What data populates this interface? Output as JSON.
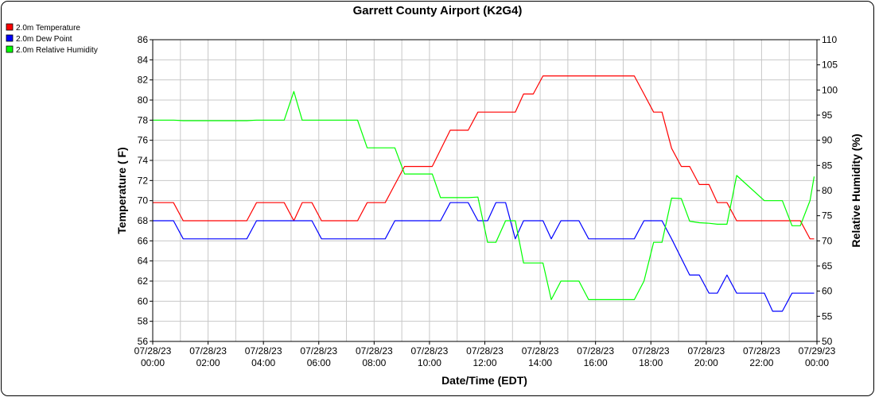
{
  "chart_data": {
    "type": "line",
    "title": "Garrett County Airport (K2G4)",
    "xlabel": "Date/Time (EDT)",
    "ylabel": "Temperature ( F)",
    "y2label": "Relative Humidity (%)",
    "ylim": [
      56,
      86
    ],
    "y2lim": [
      50,
      110
    ],
    "grid": true,
    "legend_position": "top-left",
    "x_range_hours": [
      0,
      24
    ],
    "x_tick_labels": [
      [
        "07/28/23",
        "00:00"
      ],
      [
        "07/28/23",
        "02:00"
      ],
      [
        "07/28/23",
        "04:00"
      ],
      [
        "07/28/23",
        "06:00"
      ],
      [
        "07/28/23",
        "08:00"
      ],
      [
        "07/28/23",
        "10:00"
      ],
      [
        "07/28/23",
        "12:00"
      ],
      [
        "07/28/23",
        "14:00"
      ],
      [
        "07/28/23",
        "16:00"
      ],
      [
        "07/28/23",
        "18:00"
      ],
      [
        "07/28/23",
        "20:00"
      ],
      [
        "07/28/23",
        "22:00"
      ],
      [
        "07/29/23",
        "00:00"
      ]
    ],
    "y_ticks": [
      56,
      58,
      60,
      62,
      64,
      66,
      68,
      70,
      72,
      74,
      76,
      78,
      80,
      82,
      84,
      86
    ],
    "y2_ticks": [
      50,
      55,
      60,
      65,
      70,
      75,
      80,
      85,
      90,
      95,
      100,
      105,
      110
    ],
    "series": [
      {
        "name": "2.0m Temperature",
        "axis": "left",
        "color": "#ff0000",
        "x": [
          0,
          0.75,
          1.1,
          3.4,
          3.75,
          4.75,
          5.1,
          5.4,
          5.75,
          6.1,
          7.4,
          7.75,
          8.4,
          8.75,
          9.1,
          10.1,
          10.75,
          11.4,
          11.75,
          13.1,
          13.4,
          13.75,
          14.1,
          17.4,
          17.75,
          18.1,
          18.4,
          18.75,
          19.1,
          19.4,
          19.75,
          20.1,
          20.4,
          20.75,
          21.1,
          23.4,
          23.75,
          23.9
        ],
        "y": [
          69.8,
          69.8,
          68.0,
          68.0,
          69.8,
          69.8,
          68.0,
          69.8,
          69.8,
          68.0,
          68.0,
          69.8,
          69.8,
          71.6,
          73.4,
          73.4,
          77.0,
          77.0,
          78.8,
          78.8,
          80.6,
          80.6,
          82.4,
          82.4,
          80.6,
          78.8,
          78.8,
          75.2,
          73.4,
          73.4,
          71.6,
          71.6,
          69.8,
          69.8,
          68.0,
          68.0,
          66.2,
          66.2
        ]
      },
      {
        "name": "2.0m Dew Point",
        "axis": "left",
        "color": "#0000ff",
        "x": [
          0,
          0.75,
          1.1,
          3.4,
          3.75,
          5.1,
          5.4,
          5.75,
          6.1,
          8.4,
          8.75,
          10.4,
          10.75,
          11.4,
          11.75,
          12.1,
          12.4,
          12.75,
          13.1,
          13.4,
          14.1,
          14.4,
          14.75,
          15.4,
          15.75,
          17.4,
          17.75,
          18.4,
          18.75,
          19.4,
          19.75,
          20.1,
          20.4,
          20.75,
          21.1,
          22.1,
          22.4,
          22.75,
          23.1,
          23.9
        ],
        "y": [
          68.0,
          68.0,
          66.2,
          66.2,
          68.0,
          68.0,
          68.0,
          68.0,
          66.2,
          66.2,
          68.0,
          68.0,
          69.8,
          69.8,
          68.0,
          68.0,
          69.8,
          69.8,
          66.2,
          68.0,
          68.0,
          66.2,
          68.0,
          68.0,
          66.2,
          66.2,
          68.0,
          68.0,
          66.2,
          62.6,
          62.6,
          60.8,
          60.8,
          62.6,
          60.8,
          60.8,
          59.0,
          59.0,
          60.8,
          60.8
        ]
      },
      {
        "name": "2.0m Relative Humidity",
        "axis": "right",
        "color": "#00ff00",
        "x": [
          0,
          0.75,
          1.1,
          3.4,
          3.75,
          4.75,
          5.1,
          5.4,
          5.75,
          6.1,
          7.4,
          7.75,
          8.4,
          8.75,
          9.1,
          10.1,
          10.4,
          10.75,
          11.4,
          11.75,
          12.1,
          12.4,
          12.75,
          13.1,
          13.4,
          13.75,
          14.1,
          14.4,
          14.75,
          15.4,
          15.75,
          17.4,
          17.75,
          18.1,
          18.4,
          18.75,
          19.1,
          19.4,
          19.75,
          20.1,
          20.4,
          20.75,
          21.1,
          22.1,
          22.4,
          22.75,
          23.1,
          23.4,
          23.75,
          23.9
        ],
        "y": [
          94.0,
          94.0,
          93.9,
          93.9,
          94.0,
          94.0,
          99.7,
          94.0,
          94.0,
          94.0,
          94.0,
          88.5,
          88.5,
          88.5,
          83.3,
          83.3,
          78.6,
          78.6,
          78.6,
          78.7,
          69.7,
          69.7,
          74.0,
          74.0,
          65.6,
          65.6,
          65.6,
          58.3,
          62.0,
          62.0,
          58.3,
          58.3,
          62.0,
          69.7,
          69.7,
          78.5,
          78.4,
          73.9,
          73.6,
          73.5,
          73.3,
          73.3,
          83.0,
          78.0,
          78.0,
          78.0,
          73.0,
          73.0,
          78.0,
          82.8
        ]
      }
    ]
  }
}
